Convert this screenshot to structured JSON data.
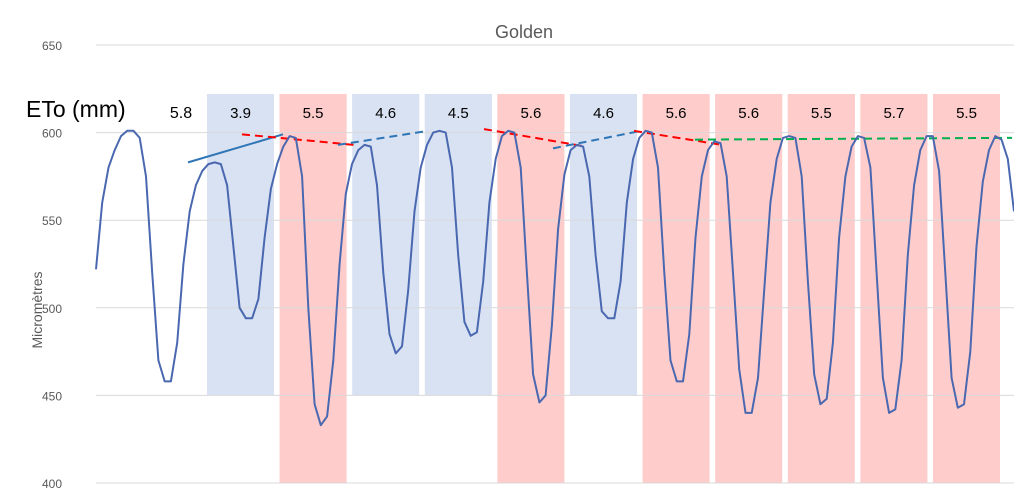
{
  "chart_data": {
    "type": "line",
    "title": "Golden",
    "ylabel": "Micromètres",
    "xlabel": "",
    "ylim": [
      400,
      650
    ],
    "yticks": [
      400,
      450,
      500,
      550,
      600,
      650
    ],
    "grid": true,
    "eto_label": "ETo (mm)",
    "colors": {
      "line": "#4a68b0",
      "blue_band": "#d9e2f3",
      "red_band": "#ffcccc",
      "trend_blue": "#2e75b6",
      "trend_red": "#ff0000",
      "trend_green": "#00b050"
    },
    "days": [
      {
        "eto": "5.8",
        "band": "none"
      },
      {
        "eto": "3.9",
        "band": "blue"
      },
      {
        "eto": "5.5",
        "band": "red"
      },
      {
        "eto": "4.6",
        "band": "blue"
      },
      {
        "eto": "4.5",
        "band": "blue"
      },
      {
        "eto": "5.6",
        "band": "red"
      },
      {
        "eto": "4.6",
        "band": "blue"
      },
      {
        "eto": "5.6",
        "band": "red"
      },
      {
        "eto": "5.6",
        "band": "red"
      },
      {
        "eto": "5.5",
        "band": "red"
      },
      {
        "eto": "5.7",
        "band": "red"
      },
      {
        "eto": "5.5",
        "band": "red"
      }
    ],
    "series": [
      {
        "values": [
          522,
          560,
          580,
          590,
          598,
          601,
          601,
          597,
          575,
          520,
          470,
          458,
          458,
          480,
          525,
          555,
          570,
          578,
          582,
          583,
          582,
          570,
          535,
          500,
          494,
          494,
          505,
          540,
          568,
          582,
          592,
          598,
          597,
          575,
          500,
          445,
          433,
          438,
          470,
          525,
          565,
          582,
          590,
          593,
          592,
          570,
          520,
          485,
          474,
          478,
          510,
          555,
          580,
          593,
          600,
          601,
          600,
          580,
          530,
          492,
          484,
          486,
          515,
          560,
          585,
          598,
          601,
          600,
          580,
          520,
          462,
          446,
          450,
          490,
          545,
          576,
          590,
          593,
          592,
          575,
          530,
          498,
          494,
          494,
          515,
          560,
          585,
          597,
          601,
          600,
          580,
          520,
          470,
          458,
          458,
          485,
          540,
          575,
          590,
          595,
          594,
          575,
          520,
          465,
          440,
          440,
          460,
          510,
          560,
          585,
          597,
          598,
          597,
          575,
          515,
          462,
          445,
          448,
          480,
          540,
          575,
          592,
          598,
          597,
          580,
          520,
          460,
          440,
          442,
          470,
          530,
          570,
          590,
          598,
          598,
          578,
          520,
          460,
          443,
          445,
          475,
          535,
          572,
          590,
          598,
          596,
          585,
          555
        ]
      }
    ],
    "trend_lines": [
      {
        "color": "blue",
        "style": "solid",
        "points": [
          [
            188,
            583
          ],
          [
            283,
            599
          ]
        ]
      },
      {
        "color": "red",
        "style": "dashed",
        "points": [
          [
            242,
            599
          ],
          [
            354,
            593
          ]
        ]
      },
      {
        "color": "blue",
        "style": "dashed",
        "points": [
          [
            338,
            593
          ],
          [
            428,
            601
          ]
        ]
      },
      {
        "color": "red",
        "style": "dashed",
        "points": [
          [
            484,
            602
          ],
          [
            586,
            592
          ]
        ]
      },
      {
        "color": "blue",
        "style": "dashed",
        "points": [
          [
            553,
            591
          ],
          [
            641,
            601
          ]
        ]
      },
      {
        "color": "red",
        "style": "dashed",
        "points": [
          [
            634,
            601
          ],
          [
            722,
            593
          ]
        ]
      },
      {
        "color": "green",
        "style": "dashed",
        "points": [
          [
            695,
            596
          ],
          [
            1012,
            597
          ]
        ]
      }
    ]
  }
}
